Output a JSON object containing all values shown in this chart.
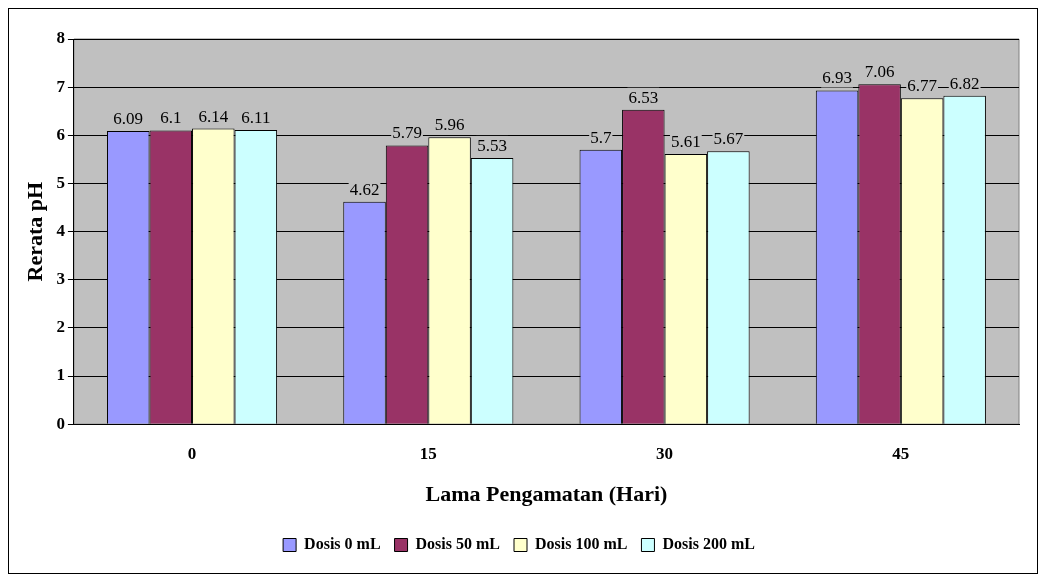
{
  "chart_data": {
    "type": "bar",
    "xlabel": "Lama Pengamatan (Hari)",
    "ylabel": "Rerata pH",
    "categories": [
      "0",
      "15",
      "30",
      "45"
    ],
    "series": [
      {
        "name": "Dosis 0 mL",
        "color": "#9999ff",
        "values": [
          6.09,
          4.62,
          5.7,
          6.93
        ]
      },
      {
        "name": "Dosis 50 mL",
        "color": "#993366",
        "values": [
          6.1,
          5.79,
          6.53,
          7.06
        ]
      },
      {
        "name": "Dosis 100 mL",
        "color": "#ffffcc",
        "values": [
          6.14,
          5.96,
          5.61,
          6.77
        ]
      },
      {
        "name": "Dosis 200 mL",
        "color": "#ccffff",
        "values": [
          6.11,
          5.53,
          5.67,
          6.82
        ]
      }
    ],
    "ylim": [
      0,
      8
    ],
    "yticks": [
      0,
      1,
      2,
      3,
      4,
      5,
      6,
      7,
      8
    ],
    "grid": "y",
    "legend": "bottom",
    "data_labels": true
  }
}
